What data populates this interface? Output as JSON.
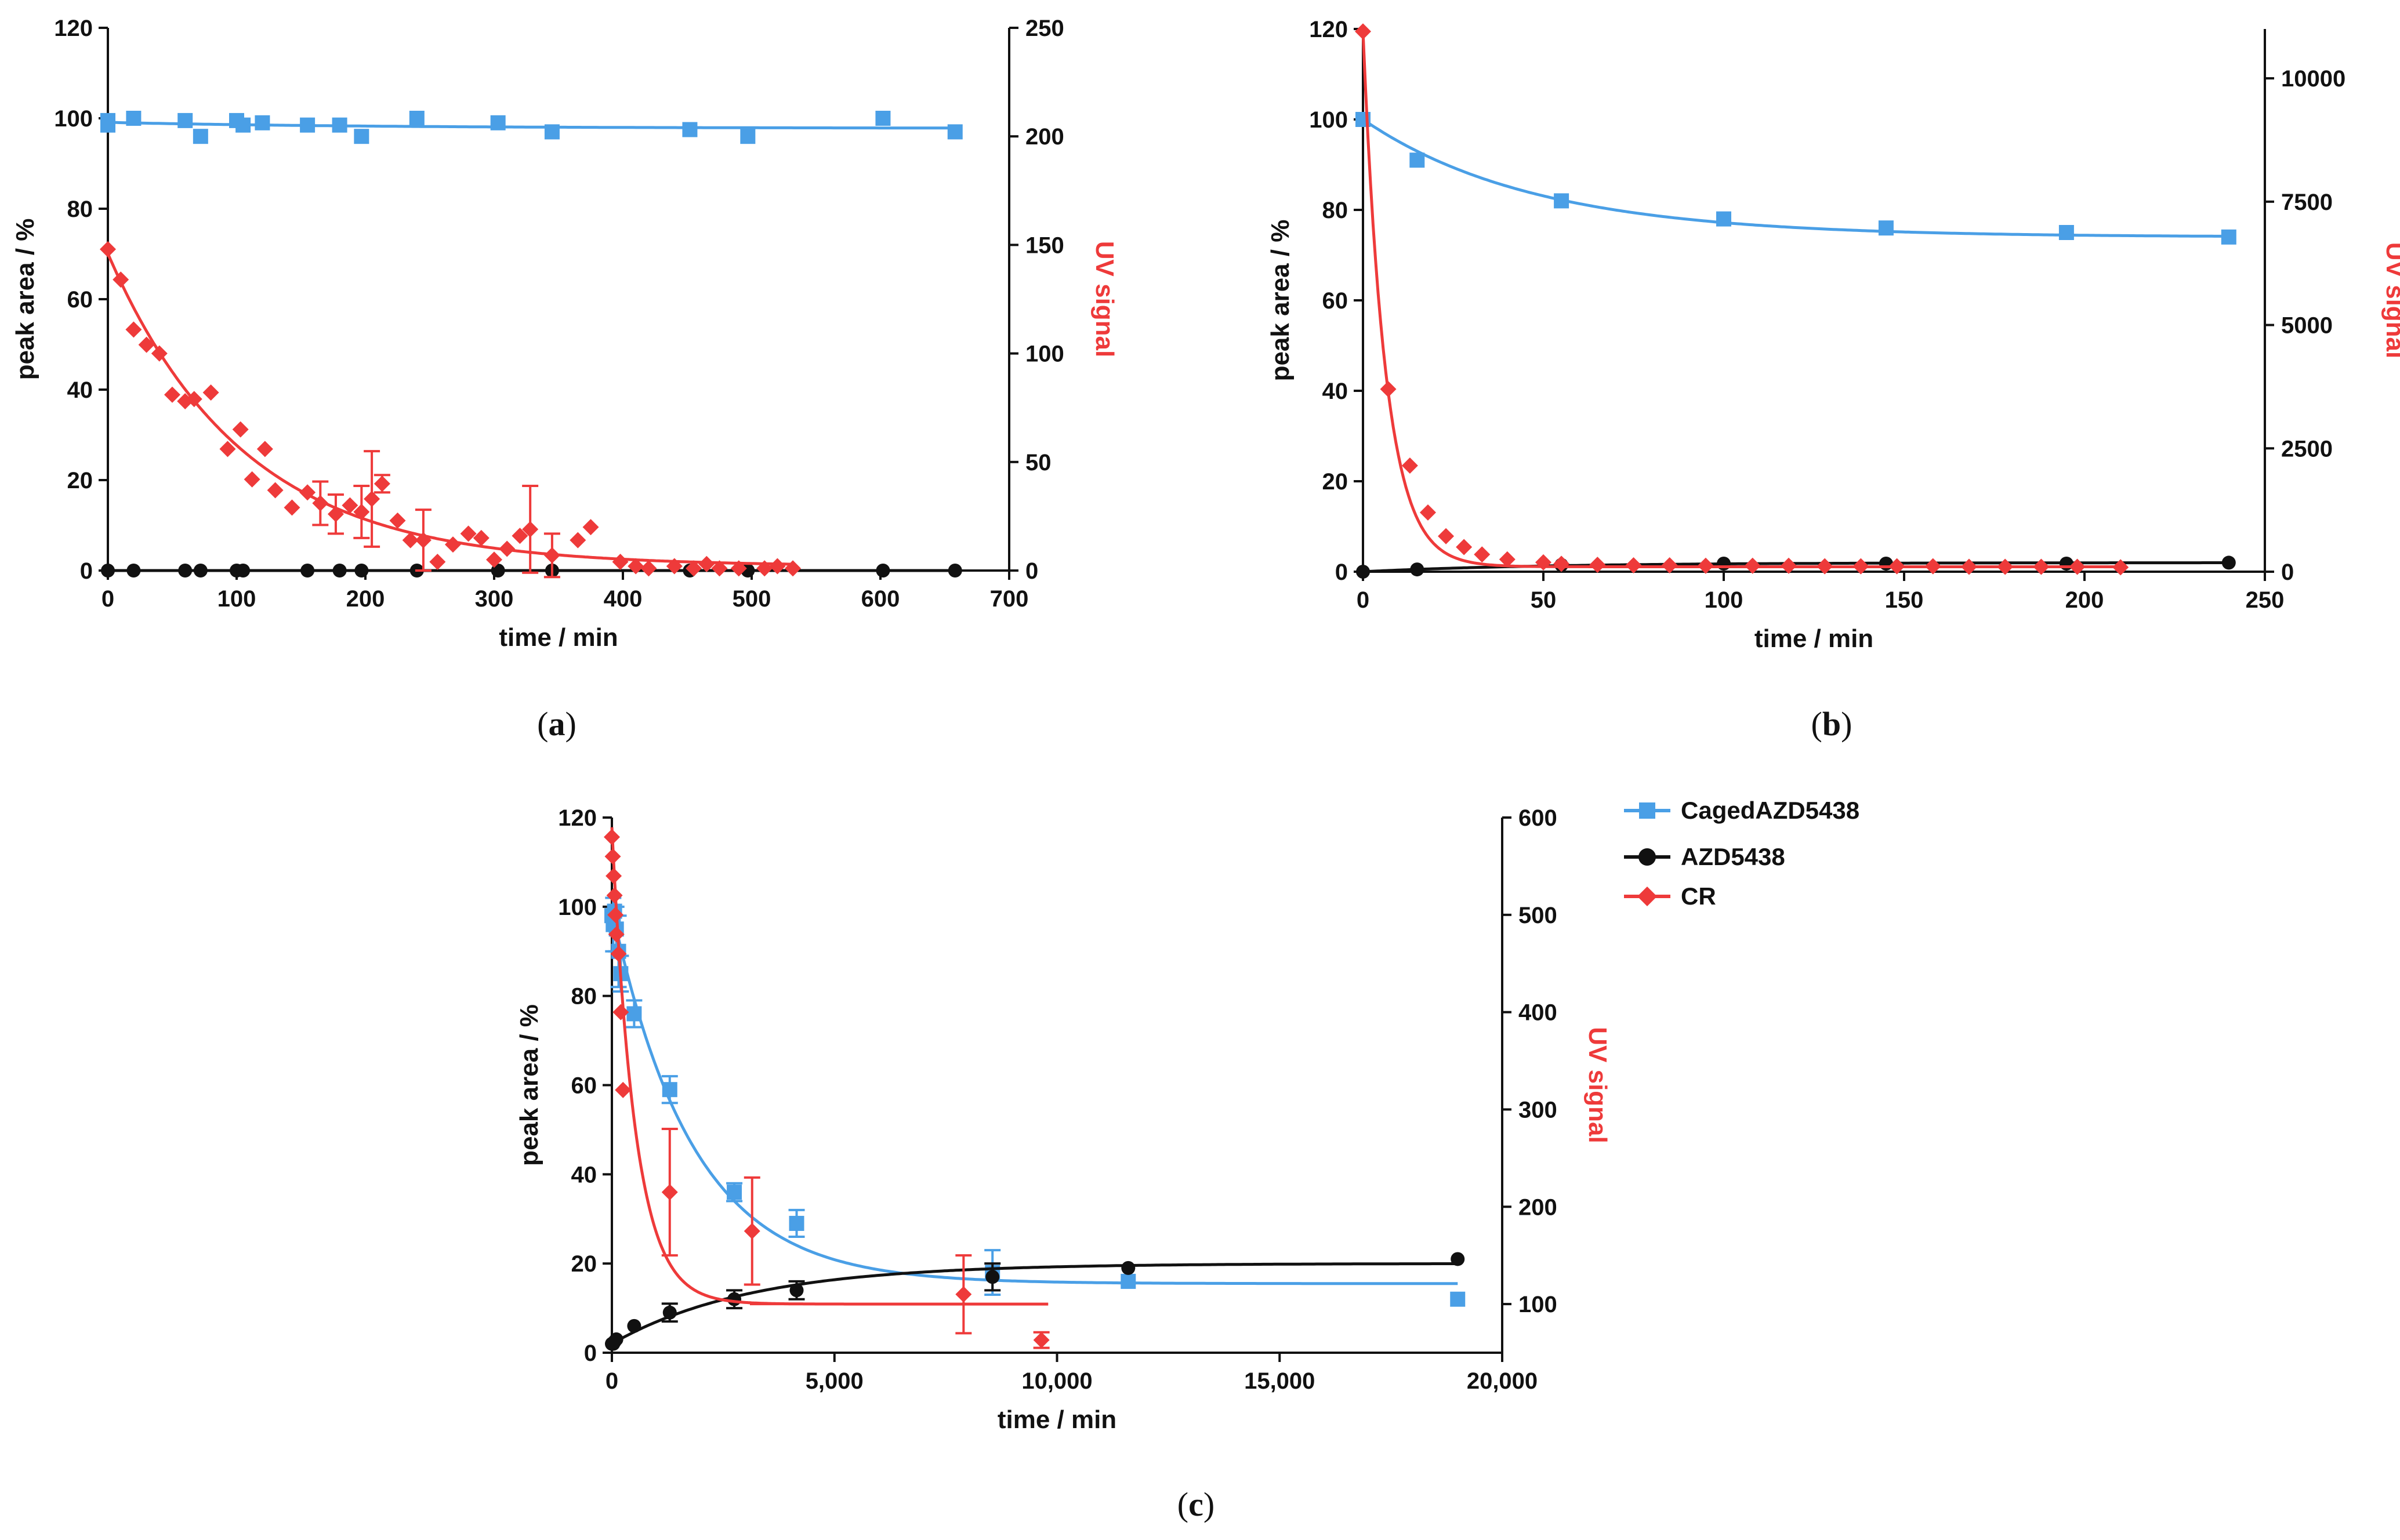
{
  "colors": {
    "caged": "#4a9fe6",
    "azd": "#111111",
    "cr": "#ee3a3a"
  },
  "legend": [
    {
      "label": "CagedAZD5438",
      "color": "#4a9fe6",
      "marker": "square"
    },
    {
      "label": "AZD5438",
      "color": "#111111",
      "marker": "circle"
    },
    {
      "label": "CR",
      "color": "#ee3a3a",
      "marker": "diamond"
    }
  ],
  "chart_data": [
    {
      "id": "a",
      "type": "scatter",
      "caption": "a",
      "xlabel": "time / min",
      "ylabel": "peak area / %",
      "y2label": "UV signal",
      "xlim": [
        0,
        700
      ],
      "ylim": [
        0,
        120
      ],
      "y2lim": [
        0,
        250
      ],
      "xticks": [
        0,
        100,
        200,
        300,
        400,
        500,
        600,
        700
      ],
      "xtick_labels": [
        "0",
        "100",
        "200",
        "300",
        "400",
        "500",
        "600",
        "700"
      ],
      "yticks": [
        0,
        20,
        40,
        60,
        80,
        100,
        120
      ],
      "ytick_labels": [
        "0",
        "20",
        "40",
        "60",
        "80",
        "100",
        "120"
      ],
      "y2ticks": [
        0,
        50,
        100,
        150,
        200,
        250
      ],
      "y2tick_labels": [
        "0",
        "50",
        "100",
        "150",
        "200",
        "250"
      ],
      "series": [
        {
          "name": "CagedAZD5438",
          "axis": "left",
          "marker": "square",
          "color": "#4a9fe6",
          "x": [
            0,
            0,
            20,
            60,
            72,
            100,
            105,
            120,
            155,
            180,
            197,
            240,
            303,
            345,
            452,
            497,
            602,
            658
          ],
          "y": [
            98.5,
            99.5,
            100,
            99.5,
            96,
            99.5,
            98.5,
            99,
            98.5,
            98.5,
            96,
            100,
            99,
            97,
            97.5,
            96,
            100,
            97
          ],
          "fit": {
            "kind": "exp",
            "a": 1.3,
            "k": 0.005,
            "c": 97.8
          }
        },
        {
          "name": "AZD5438",
          "axis": "left",
          "marker": "circle",
          "color": "#111111",
          "x": [
            0,
            20,
            60,
            72,
            100,
            105,
            155,
            180,
            197,
            240,
            303,
            345,
            452,
            497,
            602,
            658
          ],
          "y": [
            0,
            0,
            0,
            0,
            0,
            0,
            0,
            0,
            0,
            0,
            0,
            0,
            0,
            0,
            0,
            0
          ],
          "fit": {
            "kind": "exp",
            "a": 0,
            "k": 0.01,
            "c": 0
          }
        },
        {
          "name": "CR",
          "axis": "right",
          "marker": "diamond",
          "color": "#ee3a3a",
          "x": [
            0,
            10,
            20,
            30,
            40,
            50,
            60,
            67,
            80,
            93,
            103,
            112,
            122,
            130,
            143,
            155,
            165,
            177,
            188,
            197,
            205,
            213,
            225,
            235,
            245,
            256,
            268,
            280,
            290,
            300,
            310,
            320,
            328,
            345,
            365,
            375,
            398,
            410,
            420,
            440,
            455,
            465,
            475,
            490,
            510,
            520,
            532
          ],
          "y": [
            148,
            134,
            111,
            104,
            100,
            81,
            78,
            79,
            82,
            56,
            65,
            42,
            56,
            37,
            29,
            36,
            31,
            26,
            30,
            27,
            33,
            40,
            23,
            14,
            14,
            4,
            12,
            17,
            15,
            5,
            10,
            16,
            19,
            7,
            14,
            20,
            4,
            2,
            1,
            2,
            1,
            3,
            1,
            1,
            1,
            2,
            1
          ],
          "errors": [
            {
              "x": 165,
              "y": 31,
              "err": 10
            },
            {
              "x": 177,
              "y": 26,
              "err": 9
            },
            {
              "x": 197,
              "y": 27,
              "err": 12
            },
            {
              "x": 205,
              "y": 33,
              "err": 22
            },
            {
              "x": 213,
              "y": 40,
              "err": 4
            },
            {
              "x": 245,
              "y": 14,
              "err": 14
            },
            {
              "x": 328,
              "y": 19,
              "err": 20
            },
            {
              "x": 345,
              "y": 7,
              "err": 10
            }
          ],
          "fit": {
            "kind": "exp",
            "a": 144,
            "k": 0.0095,
            "c": 2
          }
        }
      ]
    },
    {
      "id": "b",
      "type": "scatter",
      "caption": "b",
      "xlabel": "time / min",
      "ylabel": "peak area / %",
      "y2label": "UV signal",
      "xlim": [
        0,
        250
      ],
      "ylim": [
        0,
        120
      ],
      "y2lim": [
        0,
        11000
      ],
      "xticks": [
        0,
        50,
        100,
        150,
        200,
        250
      ],
      "xtick_labels": [
        "0",
        "50",
        "100",
        "150",
        "200",
        "250"
      ],
      "yticks": [
        0,
        20,
        40,
        60,
        80,
        100,
        120
      ],
      "ytick_labels": [
        "0",
        "20",
        "40",
        "60",
        "80",
        "100",
        "120"
      ],
      "y2ticks": [
        0,
        2500,
        5000,
        7500,
        10000
      ],
      "y2tick_labels": [
        "0",
        "2500",
        "5000",
        "7500",
        "10000"
      ],
      "series": [
        {
          "name": "CagedAZD5438",
          "axis": "left",
          "marker": "square",
          "color": "#4a9fe6",
          "x": [
            0,
            15,
            55,
            100,
            145,
            195,
            240
          ],
          "y": [
            100,
            91,
            82,
            78,
            76,
            75,
            74
          ],
          "fit": {
            "kind": "exp",
            "a": 26,
            "k": 0.021,
            "c": 74
          }
        },
        {
          "name": "AZD5438",
          "axis": "left",
          "marker": "circle",
          "color": "#111111",
          "x": [
            0,
            15,
            55,
            100,
            145,
            195,
            240
          ],
          "y": [
            0,
            0.5,
            1.5,
            1.8,
            1.8,
            1.8,
            2.0
          ],
          "fit": {
            "kind": "exp",
            "a": -2,
            "k": 0.02,
            "c": 2
          }
        },
        {
          "name": "CR",
          "axis": "right",
          "marker": "diamond",
          "color": "#ee3a3a",
          "x": [
            0,
            7,
            13,
            18,
            23,
            28,
            33,
            40,
            50,
            55,
            65,
            75,
            85,
            95,
            108,
            118,
            128,
            138,
            148,
            158,
            168,
            178,
            188,
            198,
            210
          ],
          "y": [
            10950,
            3700,
            2150,
            1200,
            720,
            500,
            350,
            250,
            190,
            160,
            140,
            130,
            130,
            120,
            120,
            120,
            110,
            110,
            110,
            110,
            100,
            100,
            100,
            100,
            90
          ],
          "fit": {
            "kind": "exp",
            "a": 10850,
            "k": 0.16,
            "c": 100
          }
        }
      ]
    },
    {
      "id": "c",
      "type": "scatter",
      "caption": "c",
      "xlabel": "time / min",
      "ylabel": "peak area / %",
      "y2label": "UV signal",
      "xlim": [
        0,
        20000
      ],
      "ylim": [
        0,
        120
      ],
      "y2lim": [
        50,
        600
      ],
      "xticks": [
        0,
        5000,
        10000,
        15000,
        20000
      ],
      "xtick_labels": [
        "0",
        "5,000",
        "10,000",
        "15,000",
        "20,000"
      ],
      "yticks": [
        0,
        20,
        40,
        60,
        80,
        100,
        120
      ],
      "ytick_labels": [
        "0",
        "20",
        "40",
        "60",
        "80",
        "100",
        "120"
      ],
      "y2ticks": [
        100,
        200,
        300,
        400,
        500,
        600
      ],
      "y2tick_labels": [
        "100",
        "200",
        "300",
        "400",
        "500",
        "600"
      ],
      "series": [
        {
          "name": "CagedAZD5438",
          "axis": "left",
          "marker": "square",
          "color": "#4a9fe6",
          "x": [
            0,
            30,
            60,
            100,
            150,
            200,
            500,
            1300,
            2750,
            4150,
            8550,
            11600,
            19000
          ],
          "y": [
            98,
            96,
            99,
            95,
            90,
            85,
            76,
            59,
            36,
            29,
            18,
            16,
            12
          ],
          "errors": [
            {
              "x": 30,
              "y": 96,
              "err": 6
            },
            {
              "x": 100,
              "y": 95,
              "err": 5
            },
            {
              "x": 150,
              "y": 90,
              "err": 8
            },
            {
              "x": 200,
              "y": 85,
              "err": 4
            },
            {
              "x": 500,
              "y": 76,
              "err": 3
            },
            {
              "x": 1300,
              "y": 59,
              "err": 3
            },
            {
              "x": 2750,
              "y": 36,
              "err": 2
            },
            {
              "x": 4150,
              "y": 29,
              "err": 3
            },
            {
              "x": 8550,
              "y": 18,
              "err": 5
            }
          ],
          "fit": {
            "kind": "exp",
            "a": 84,
            "k": 0.00055,
            "c": 15.5
          }
        },
        {
          "name": "AZD5438",
          "axis": "left",
          "marker": "circle",
          "color": "#111111",
          "x": [
            0,
            30,
            60,
            100,
            500,
            1300,
            2750,
            4150,
            8550,
            11600,
            19000
          ],
          "y": [
            2,
            2,
            2.5,
            3,
            6,
            9,
            12,
            14,
            17,
            19,
            21
          ],
          "errors": [
            {
              "x": 1300,
              "y": 9,
              "err": 2
            },
            {
              "x": 2750,
              "y": 12,
              "err": 2
            },
            {
              "x": 4150,
              "y": 14,
              "err": 2
            },
            {
              "x": 8550,
              "y": 17,
              "err": 3
            }
          ],
          "fit": {
            "kind": "exp",
            "a": -18,
            "k": 0.00032,
            "c": 20
          }
        },
        {
          "name": "CR",
          "axis": "right",
          "marker": "diamond",
          "color": "#ee3a3a",
          "x": [
            0,
            20,
            40,
            60,
            80,
            100,
            150,
            200,
            250,
            1300,
            3150,
            7900,
            9650
          ],
          "y": [
            580,
            560,
            540,
            520,
            500,
            480,
            460,
            400,
            320,
            215,
            175,
            110,
            63
          ],
          "errors": [
            {
              "x": 1300,
              "y": 215,
              "err": 65
            },
            {
              "x": 3150,
              "y": 175,
              "err": 55
            },
            {
              "x": 7900,
              "y": 110,
              "err": 40
            },
            {
              "x": 9650,
              "y": 63,
              "err": 8
            }
          ],
          "xerrors": [
            {
              "x": 7900,
              "y": 100,
              "left": 4800,
              "right": 1900
            }
          ],
          "fit": {
            "kind": "exp",
            "a": 490,
            "k": 0.0019,
            "c": 100,
            "xmax": 9800
          }
        }
      ]
    }
  ]
}
